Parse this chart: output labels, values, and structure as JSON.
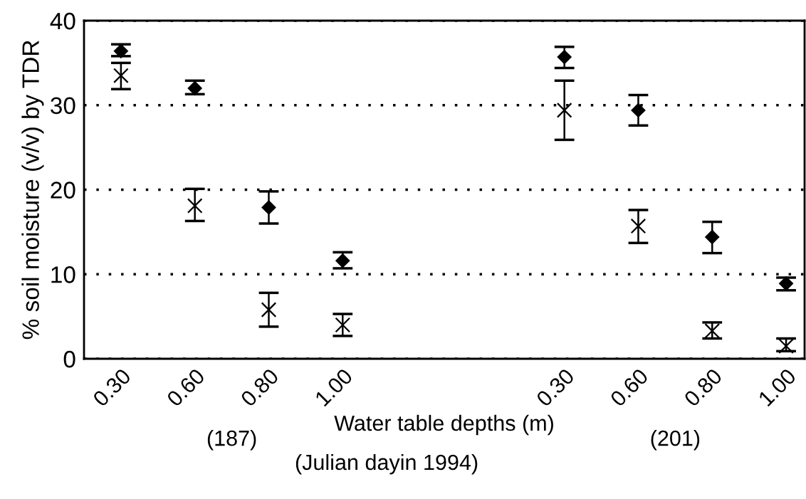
{
  "chart_data": {
    "type": "scatter",
    "xlabel": "Water table depths (m)",
    "ylabel": "% soil moisture (v/v) by TDR",
    "categories": [
      "0.30",
      "0.60",
      "0.80",
      "1.00",
      null,
      null,
      "0.30",
      "0.60",
      "0.80",
      "1.00"
    ],
    "series": [
      {
        "color": "#000000",
        "marker": "diamond",
        "values": [
          36.4,
          32.0,
          17.9,
          11.6,
          null,
          null,
          35.7,
          29.4,
          14.4,
          8.9
        ],
        "errors": [
          [
            35.8,
            37.2
          ],
          [
            31.3,
            32.9
          ],
          [
            16.0,
            19.8
          ],
          [
            10.7,
            12.6
          ],
          null,
          null,
          [
            34.4,
            36.9
          ],
          [
            27.6,
            31.2
          ],
          [
            12.5,
            16.2
          ],
          [
            8.1,
            9.6
          ]
        ]
      },
      {
        "color": "#000000",
        "marker": "cross",
        "values": [
          33.5,
          18.1,
          5.8,
          4.0,
          null,
          null,
          29.4,
          15.7,
          3.3,
          1.5
        ],
        "errors": [
          [
            31.9,
            35.0
          ],
          [
            16.3,
            20.1
          ],
          [
            3.8,
            7.8
          ],
          [
            2.7,
            5.3
          ],
          null,
          null,
          [
            25.9,
            32.9
          ],
          [
            13.7,
            17.6
          ],
          [
            2.4,
            4.3
          ],
          [
            0.9,
            2.4
          ]
        ]
      }
    ],
    "ylim": [
      0,
      40
    ],
    "yticks": [
      0,
      10,
      20,
      30,
      40
    ],
    "grid": "y",
    "line_style": "dotted",
    "annotations": [
      "(187)",
      "(201)",
      "(Julian dayin 1994)"
    ]
  }
}
